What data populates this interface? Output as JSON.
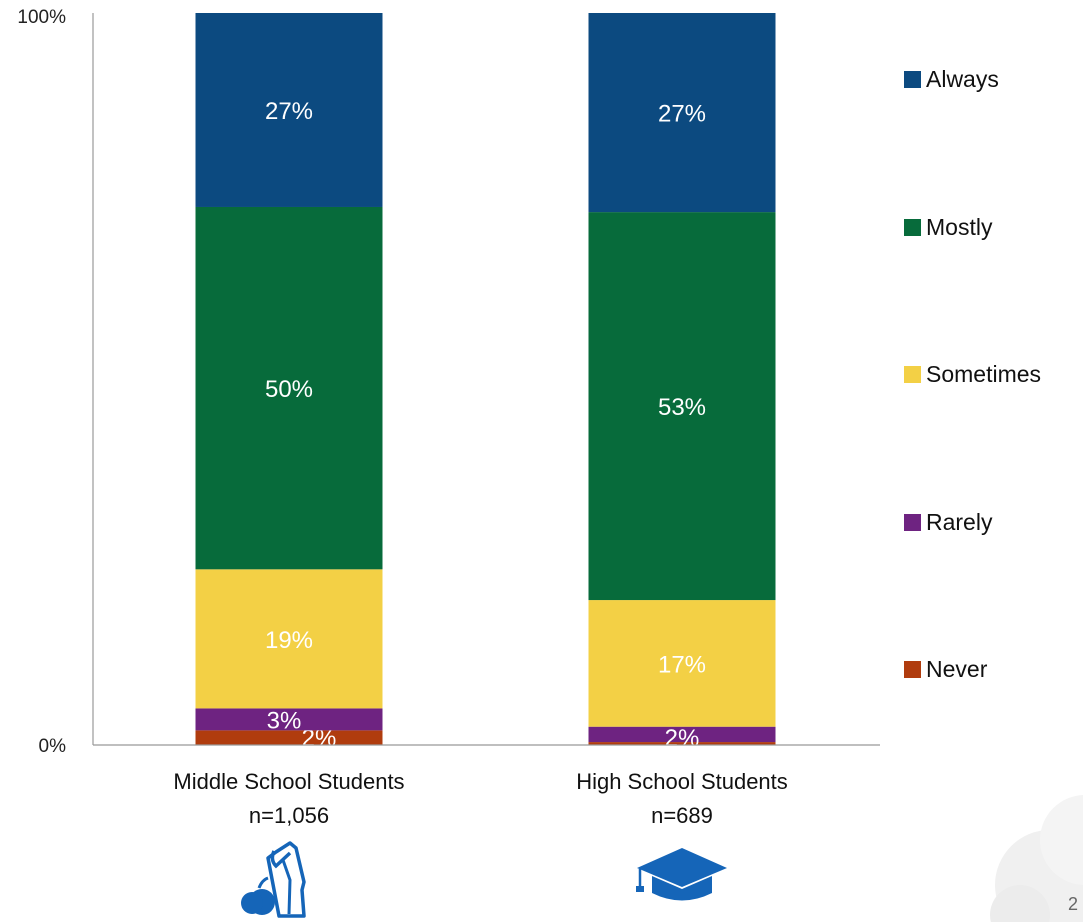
{
  "chart_data": {
    "type": "bar",
    "stacked": true,
    "categories": [
      "Middle School Students",
      "High School Students"
    ],
    "category_sublabels": [
      "n=1,056",
      "n=689"
    ],
    "series": [
      {
        "name": "Never",
        "color": "#B03C0E",
        "values": [
          2,
          0.4
        ],
        "labels": [
          "2%",
          ""
        ]
      },
      {
        "name": "Rarely",
        "color": "#6E2381",
        "values": [
          3,
          2.1
        ],
        "labels": [
          "3%",
          "2%"
        ]
      },
      {
        "name": "Sometimes",
        "color": "#F3D045",
        "values": [
          19,
          17.3
        ],
        "labels": [
          "19%",
          "17%"
        ]
      },
      {
        "name": "Mostly",
        "color": "#076B3B",
        "values": [
          49.5,
          53
        ],
        "labels": [
          "50%",
          "53%"
        ]
      },
      {
        "name": "Always",
        "color": "#0C4A80",
        "values": [
          26.5,
          27.2
        ],
        "labels": [
          "27%",
          "27%"
        ]
      }
    ],
    "legend_order": [
      "Always",
      "Mostly",
      "Sometimes",
      "Rarely",
      "Never"
    ],
    "yticks": [
      "0%",
      "100%"
    ],
    "ylim": [
      0,
      100
    ],
    "legend_position": "right",
    "grid": false,
    "category_icons": [
      "lunch-bag-apple-icon",
      "graduation-cap-icon"
    ],
    "icon_color": "#1565B8"
  },
  "page_number": "2"
}
